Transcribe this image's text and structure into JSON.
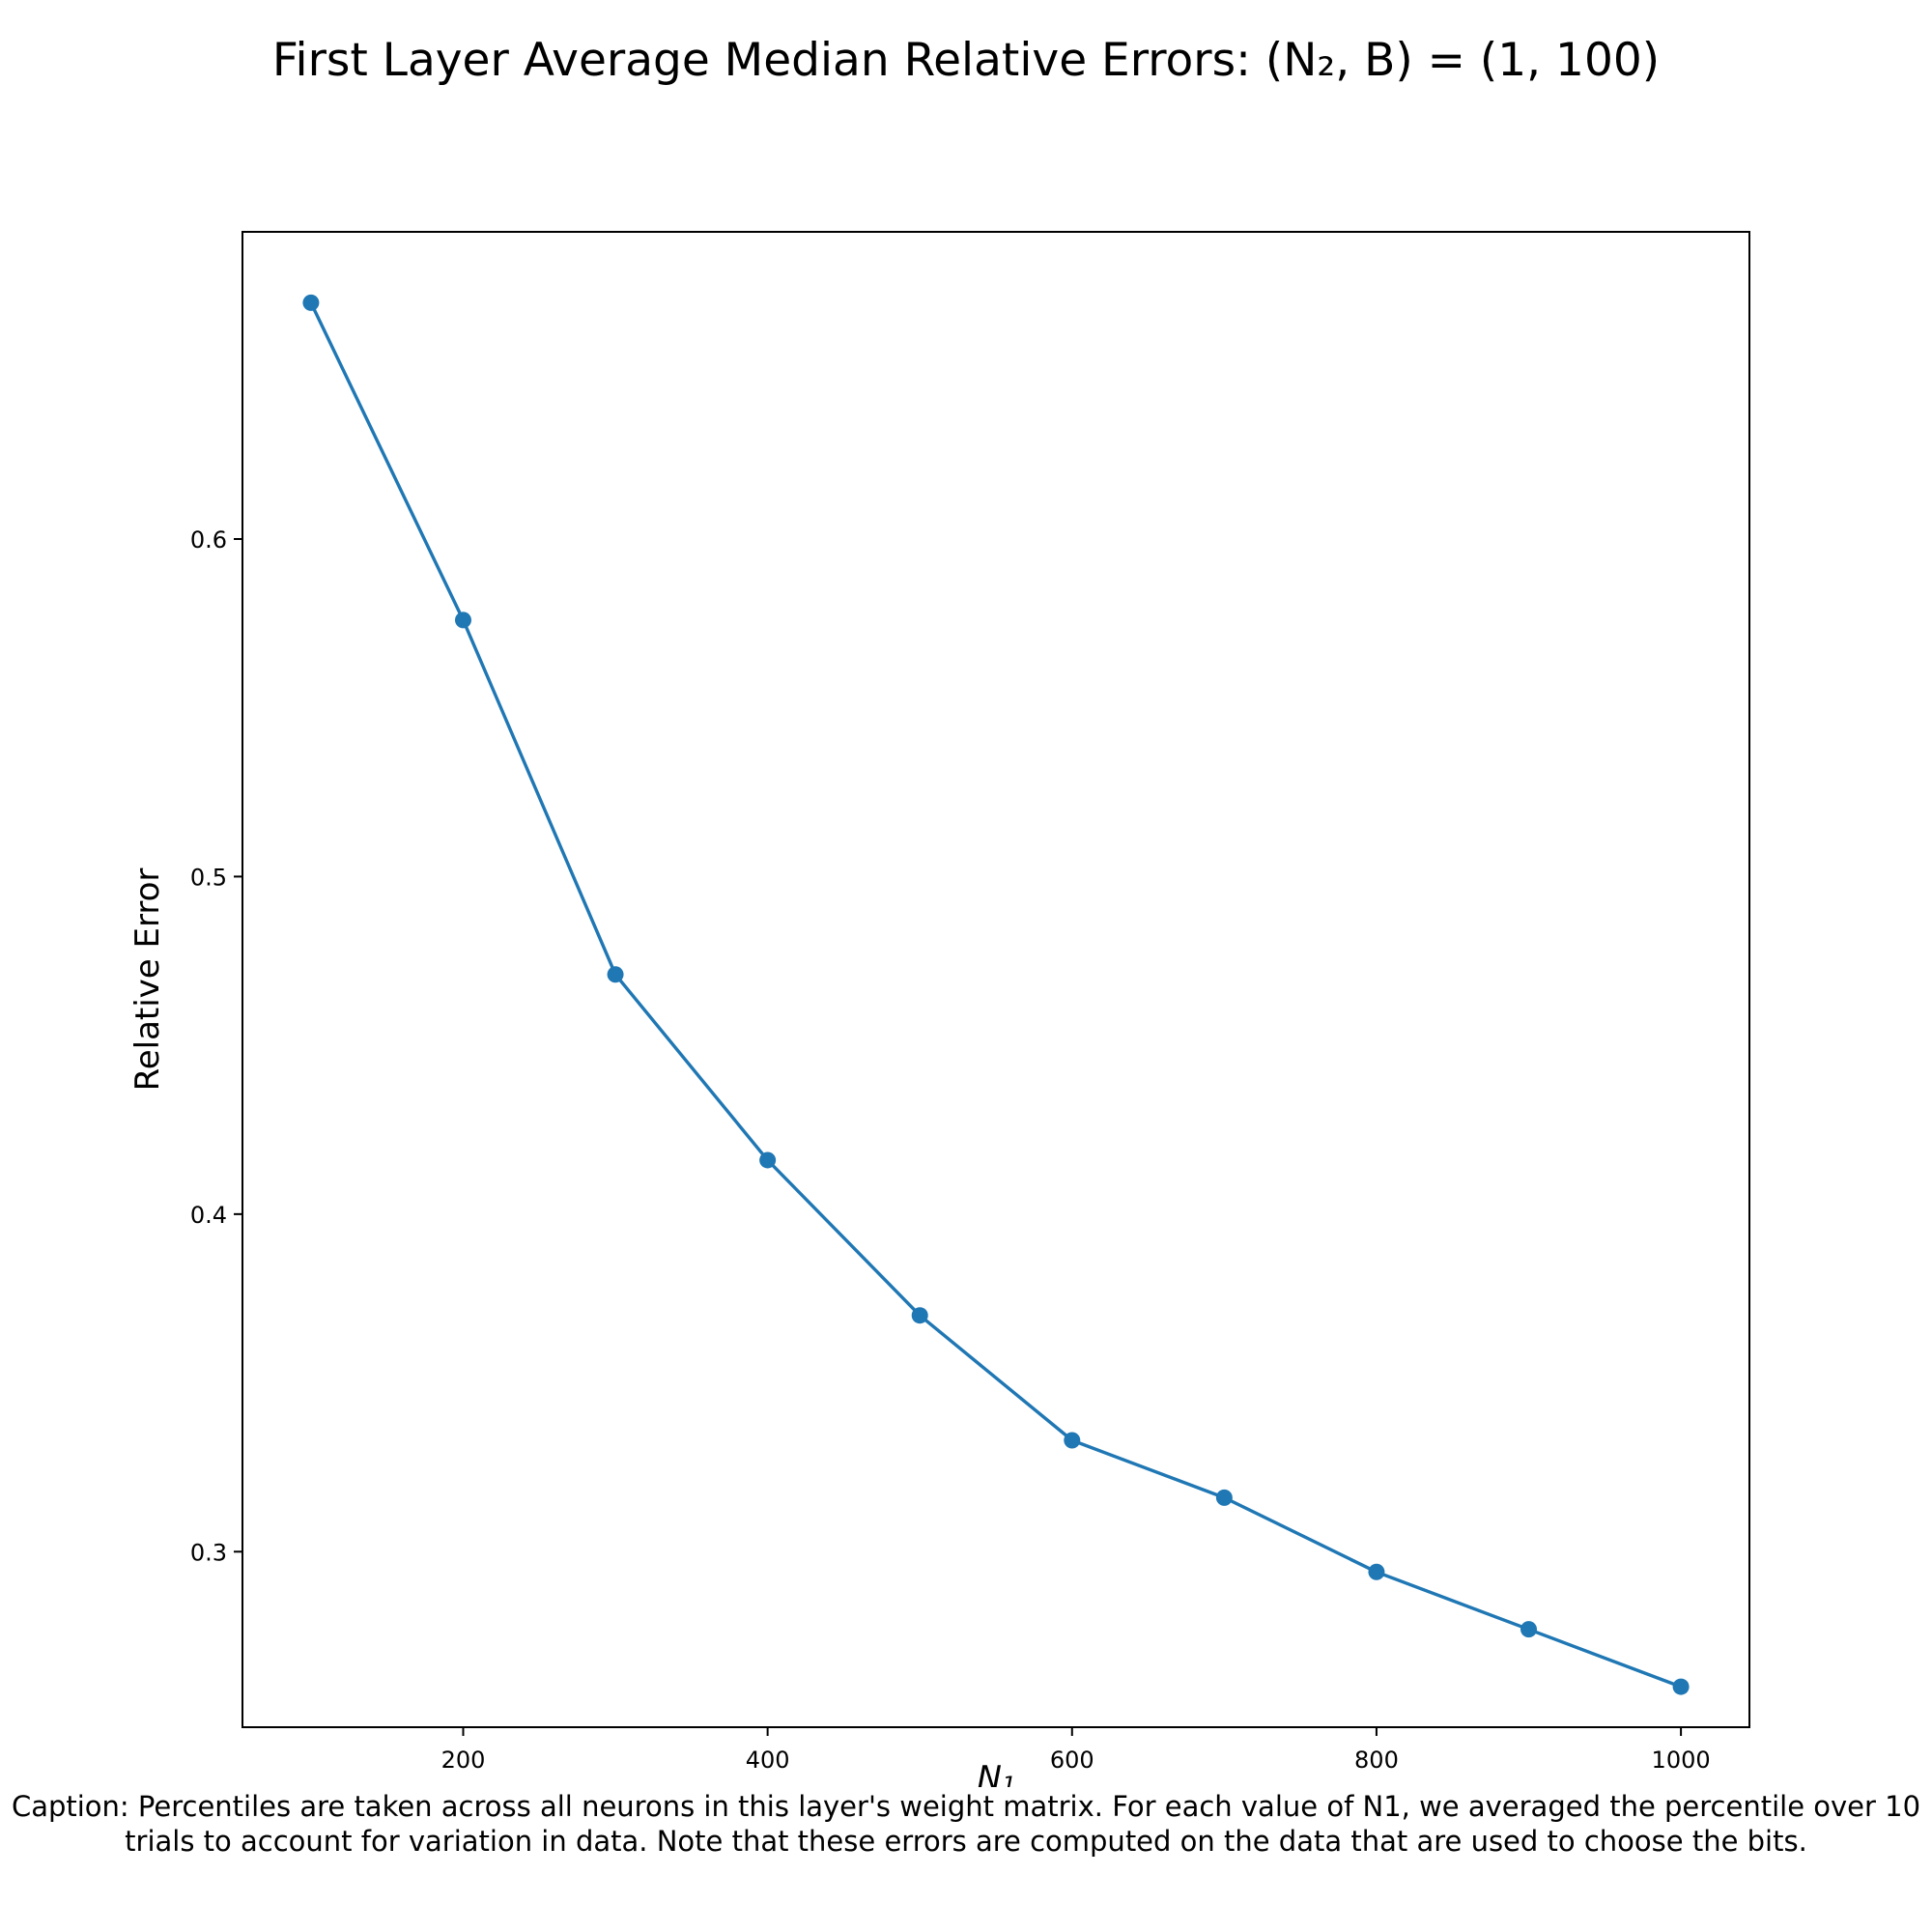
{
  "chart_data": {
    "type": "line",
    "title": "First Layer Average Median Relative Errors: (N₂, B) = (1, 100)",
    "xlabel": "N₁",
    "ylabel": "Relative Error",
    "x": [
      100,
      200,
      300,
      400,
      500,
      600,
      700,
      800,
      900,
      1000
    ],
    "series": [
      {
        "values": [
          0.67,
          0.576,
          0.471,
          0.416,
          0.37,
          0.333,
          0.316,
          0.294,
          0.277,
          0.26
        ],
        "color": "#1f77b4",
        "marker": "circle"
      }
    ],
    "xlim": [
      55,
      1045
    ],
    "ylim": [
      0.248,
      0.691
    ],
    "xticks": [
      200,
      400,
      600,
      800,
      1000
    ],
    "yticks": [
      0.3,
      0.4,
      0.5,
      0.6
    ],
    "xtick_labels": [
      "200",
      "400",
      "600",
      "800",
      "1000"
    ],
    "ytick_labels": [
      "0.3",
      "0.4",
      "0.5",
      "0.6"
    ],
    "grid": false,
    "legend": "none"
  },
  "caption": "Caption: Percentiles are taken across all neurons in this layer's weight matrix. For each value of N1, we averaged the percentile over 10 trials to account for variation in data. Note that these errors are computed on the data that are used to choose the bits."
}
